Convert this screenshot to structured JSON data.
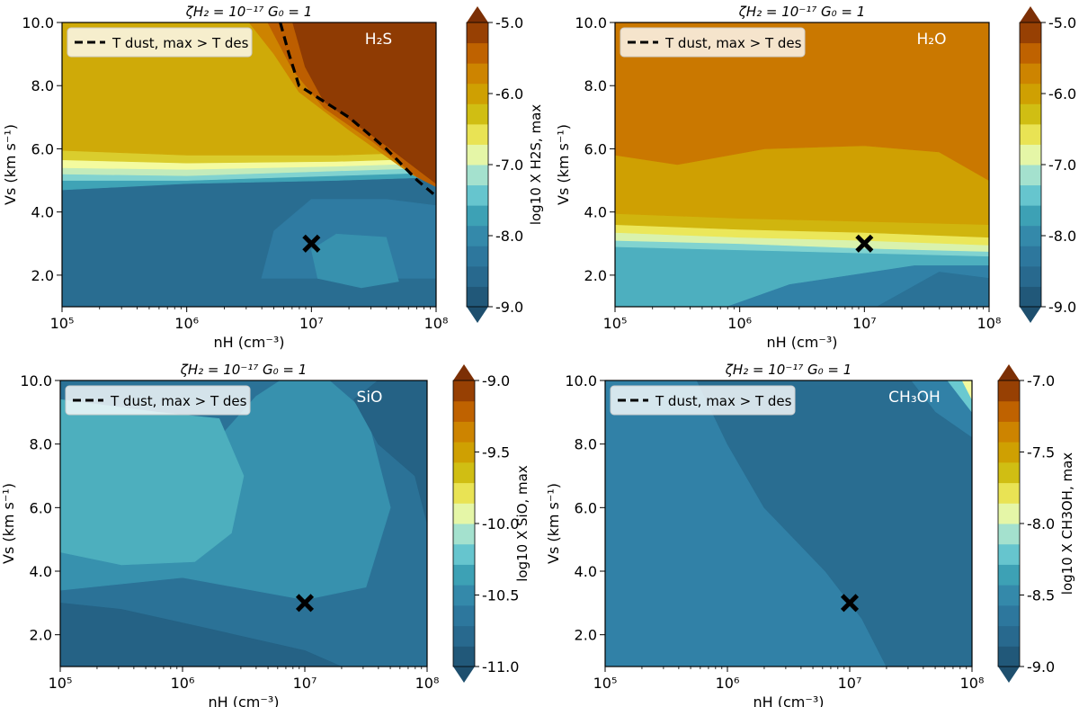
{
  "chart_data": [
    {
      "type": "heatmap",
      "title": "ζH₂ = 10⁻¹⁷ G₀ = 1",
      "xlabel": "nH (cm⁻³)",
      "ylabel": "Vs (km s⁻¹)",
      "xscale": "log",
      "xlim": [
        5,
        8
      ],
      "ylim": [
        1,
        10
      ],
      "xticks": [
        "10⁵",
        "10⁶",
        "10⁷",
        "10⁸"
      ],
      "yticks": [
        "2.0",
        "4.0",
        "6.0",
        "8.0",
        "10.0"
      ],
      "molecule": "H₂S",
      "legend_label": "T dust, max > T des",
      "cbar_label": "log10 X H2S, max",
      "cbar_ticks": [
        "-9.0",
        "-8.0",
        "-7.0",
        "-6.0",
        "-5.0"
      ],
      "cbar_range": [
        -9,
        -5
      ],
      "marker": {
        "x": 7,
        "y": 3
      },
      "tdes_curve": [
        [
          6.75,
          10
        ],
        [
          6.82,
          9
        ],
        [
          6.9,
          8
        ],
        [
          7.3,
          7
        ],
        [
          7.6,
          6
        ],
        [
          7.85,
          5
        ],
        [
          8.0,
          4.5
        ]
      ],
      "regions": [
        {
          "value": -8.5,
          "points": [
            [
              5,
              1
            ],
            [
              8,
              1
            ],
            [
              8,
              5.1
            ],
            [
              7.2,
              5.0
            ],
            [
              6,
              4.9
            ],
            [
              5,
              4.7
            ]
          ]
        },
        {
          "value": -8.2,
          "points": [
            [
              6.6,
              1.9
            ],
            [
              8,
              1.9
            ],
            [
              8,
              4.2
            ],
            [
              7.6,
              4.4
            ],
            [
              7,
              4.4
            ],
            [
              6.7,
              3.4
            ]
          ]
        },
        {
          "value": -7.9,
          "points": [
            [
              7.05,
              1.9
            ],
            [
              7.4,
              1.6
            ],
            [
              7.7,
              1.8
            ],
            [
              7.6,
              3.2
            ],
            [
              7.2,
              3.3
            ],
            [
              7,
              2.8
            ]
          ]
        },
        {
          "value": -7.7,
          "points": [
            [
              5,
              4.7
            ],
            [
              6,
              4.9
            ],
            [
              7.2,
              5.0
            ],
            [
              8,
              5.1
            ],
            [
              8,
              5.25
            ],
            [
              7.2,
              5.15
            ],
            [
              6,
              5.0
            ],
            [
              5,
              5.0
            ]
          ]
        },
        {
          "value": -7.3,
          "points": [
            [
              5,
              5.0
            ],
            [
              6,
              5.0
            ],
            [
              7.2,
              5.15
            ],
            [
              8,
              5.25
            ],
            [
              8,
              5.4
            ],
            [
              7.2,
              5.3
            ],
            [
              6,
              5.15
            ],
            [
              5,
              5.2
            ]
          ]
        },
        {
          "value": -7.0,
          "points": [
            [
              5,
              5.2
            ],
            [
              6,
              5.15
            ],
            [
              7.2,
              5.3
            ],
            [
              8,
              5.4
            ],
            [
              8,
              5.55
            ],
            [
              7.2,
              5.45
            ],
            [
              6,
              5.35
            ],
            [
              5,
              5.4
            ]
          ]
        },
        {
          "value": -6.8,
          "points": [
            [
              5,
              5.4
            ],
            [
              6,
              5.35
            ],
            [
              7.2,
              5.45
            ],
            [
              8,
              5.55
            ],
            [
              8,
              5.7
            ],
            [
              7.2,
              5.6
            ],
            [
              6,
              5.55
            ],
            [
              5,
              5.65
            ]
          ]
        },
        {
          "value": -6.4,
          "points": [
            [
              5,
              5.65
            ],
            [
              6,
              5.55
            ],
            [
              7.2,
              5.6
            ],
            [
              8,
              5.7
            ],
            [
              8,
              5.9
            ],
            [
              7.2,
              5.8
            ],
            [
              6,
              5.8
            ],
            [
              5,
              5.95
            ]
          ]
        },
        {
          "value": -6.1,
          "points": [
            [
              5,
              5.95
            ],
            [
              6,
              5.8
            ],
            [
              7.2,
              5.8
            ],
            [
              8,
              5.9
            ],
            [
              8,
              10
            ],
            [
              5,
              10
            ]
          ]
        },
        {
          "value": -5.7,
          "points": [
            [
              6.5,
              10
            ],
            [
              8,
              10
            ],
            [
              8,
              4.8
            ],
            [
              7.8,
              5.2
            ],
            [
              7.3,
              6.6
            ],
            [
              6.9,
              7.8
            ],
            [
              6.7,
              9
            ]
          ]
        },
        {
          "value": -5.4,
          "points": [
            [
              6.65,
              10
            ],
            [
              8,
              10
            ],
            [
              8,
              4.8
            ],
            [
              7.85,
              5.1
            ],
            [
              7.5,
              6.2
            ],
            [
              7.1,
              7.3
            ],
            [
              6.85,
              8.5
            ]
          ]
        },
        {
          "value": -5.1,
          "points": [
            [
              6.85,
              10
            ],
            [
              8,
              10
            ],
            [
              8,
              4.9
            ],
            [
              7.6,
              6.1
            ],
            [
              7.1,
              7.5
            ],
            [
              6.95,
              8.6
            ]
          ]
        }
      ]
    },
    {
      "type": "heatmap",
      "title": "ζH₂ = 10⁻¹⁷ G₀ = 1",
      "xlabel": "nH (cm⁻³)",
      "ylabel": "Vs (km s⁻¹)",
      "xscale": "log",
      "xlim": [
        5,
        8
      ],
      "ylim": [
        1,
        10
      ],
      "xticks": [
        "10⁵",
        "10⁶",
        "10⁷",
        "10⁸"
      ],
      "yticks": [
        "2.0",
        "4.0",
        "6.0",
        "8.0",
        "10.0"
      ],
      "molecule": "H₂O",
      "legend_label": "T dust, max > T des",
      "cbar_label": "log10 X H2O, max",
      "cbar_ticks": [
        "-9.0",
        "-8.0",
        "-7.0",
        "-6.0",
        "-5.0"
      ],
      "cbar_range": [
        -9,
        -5
      ],
      "marker": {
        "x": 7,
        "y": 3
      },
      "tdes_curve": [],
      "regions": [
        {
          "value": -7.6,
          "points": [
            [
              5,
              1
            ],
            [
              8,
              1
            ],
            [
              8,
              2.6
            ],
            [
              7,
              2.7
            ],
            [
              6,
              2.8
            ],
            [
              5,
              2.9
            ]
          ]
        },
        {
          "value": -8.1,
          "points": [
            [
              5.9,
              1
            ],
            [
              8,
              1
            ],
            [
              8,
              2.3
            ],
            [
              7.4,
              2.3
            ],
            [
              6.4,
              1.7
            ]
          ]
        },
        {
          "value": -8.4,
          "points": [
            [
              7.1,
              1
            ],
            [
              8,
              1
            ],
            [
              8,
              1.9
            ],
            [
              7.6,
              2.1
            ]
          ]
        },
        {
          "value": -7.3,
          "points": [
            [
              5,
              2.9
            ],
            [
              6,
              2.8
            ],
            [
              7,
              2.7
            ],
            [
              8,
              2.6
            ],
            [
              8,
              2.75
            ],
            [
              7,
              2.85
            ],
            [
              6,
              3.0
            ],
            [
              5,
              3.1
            ]
          ]
        },
        {
          "value": -6.9,
          "points": [
            [
              5,
              3.1
            ],
            [
              6,
              3.0
            ],
            [
              7,
              2.85
            ],
            [
              8,
              2.75
            ],
            [
              8,
              2.95
            ],
            [
              7,
              3.1
            ],
            [
              6,
              3.2
            ],
            [
              5,
              3.35
            ]
          ]
        },
        {
          "value": -6.6,
          "points": [
            [
              5,
              3.35
            ],
            [
              6,
              3.2
            ],
            [
              7,
              3.1
            ],
            [
              8,
              2.95
            ],
            [
              8,
              3.2
            ],
            [
              7,
              3.35
            ],
            [
              6,
              3.45
            ],
            [
              5,
              3.6
            ]
          ]
        },
        {
          "value": -6.2,
          "points": [
            [
              5,
              3.6
            ],
            [
              6,
              3.45
            ],
            [
              7,
              3.35
            ],
            [
              8,
              3.2
            ],
            [
              8,
              3.6
            ],
            [
              7,
              3.7
            ],
            [
              6,
              3.8
            ],
            [
              5,
              3.95
            ]
          ]
        },
        {
          "value": -6.0,
          "points": [
            [
              5,
              3.95
            ],
            [
              6,
              3.8
            ],
            [
              7,
              3.7
            ],
            [
              8,
              3.6
            ],
            [
              8,
              5.0
            ],
            [
              7.6,
              5.9
            ],
            [
              7,
              6.1
            ],
            [
              6.2,
              6.0
            ],
            [
              5.5,
              5.5
            ],
            [
              5,
              5.8
            ]
          ]
        },
        {
          "value": -5.6,
          "points": [
            [
              5,
              5.8
            ],
            [
              5.5,
              5.5
            ],
            [
              6.2,
              6.0
            ],
            [
              7,
              6.1
            ],
            [
              7.6,
              5.9
            ],
            [
              8,
              5.0
            ],
            [
              8,
              10
            ],
            [
              5,
              10
            ]
          ]
        }
      ]
    },
    {
      "type": "heatmap",
      "title": "ζH₂ = 10⁻¹⁷ G₀ = 1",
      "xlabel": "nH (cm⁻³)",
      "ylabel": "Vs (km s⁻¹)",
      "xscale": "log",
      "xlim": [
        5,
        8
      ],
      "ylim": [
        1,
        10
      ],
      "xticks": [
        "10⁵",
        "10⁶",
        "10⁷",
        "10⁸"
      ],
      "yticks": [
        "2.0",
        "4.0",
        "6.0",
        "8.0",
        "10.0"
      ],
      "molecule": "SiO",
      "legend_label": "T dust, max > T des",
      "cbar_label": "log10 X SiO, max",
      "cbar_ticks": [
        "-11.0",
        "-10.5",
        "-10.0",
        "-9.5",
        "-9.0"
      ],
      "cbar_range": [
        -11,
        -9
      ],
      "marker": {
        "x": 7,
        "y": 3
      },
      "tdes_curve": [],
      "regions": [
        {
          "value": -10.7,
          "points": [
            [
              5,
              1
            ],
            [
              8,
              1
            ],
            [
              8,
              10
            ],
            [
              5,
              10
            ]
          ]
        },
        {
          "value": -10.45,
          "points": [
            [
              5,
              4.8
            ],
            [
              5.8,
              7.2
            ],
            [
              6.3,
              8.2
            ],
            [
              6.6,
              9.5
            ],
            [
              6.8,
              10
            ],
            [
              7.2,
              10
            ],
            [
              7.5,
              9.0
            ],
            [
              7.7,
              6.0
            ],
            [
              7.5,
              3.5
            ],
            [
              7,
              3.1
            ],
            [
              6,
              3.8
            ],
            [
              5,
              3.4
            ]
          ]
        },
        {
          "value": -10.3,
          "points": [
            [
              5,
              6.2
            ],
            [
              5,
              9.4
            ],
            [
              5.8,
              9.0
            ],
            [
              6.3,
              8.8
            ],
            [
              6.5,
              7.0
            ],
            [
              6.4,
              5.2
            ],
            [
              6.1,
              4.3
            ],
            [
              5.5,
              4.2
            ],
            [
              5,
              4.6
            ]
          ]
        },
        {
          "value": -10.85,
          "points": [
            [
              5,
              1
            ],
            [
              7.3,
              1
            ],
            [
              7,
              1.5
            ],
            [
              6.2,
              2.2
            ],
            [
              5.5,
              2.8
            ],
            [
              5,
              3.0
            ]
          ]
        },
        {
          "value": -10.85,
          "points": [
            [
              7.6,
              10
            ],
            [
              8,
              10
            ],
            [
              8,
              5.5
            ],
            [
              7.9,
              7.0
            ],
            [
              7.6,
              8.0
            ],
            [
              7.4,
              9.4
            ]
          ]
        }
      ]
    },
    {
      "type": "heatmap",
      "title": "ζH₂ = 10⁻¹⁷ G₀ = 1",
      "xlabel": "nH (cm⁻³)",
      "ylabel": "Vs (km s⁻¹)",
      "xscale": "log",
      "xlim": [
        5,
        8
      ],
      "ylim": [
        1,
        10
      ],
      "xticks": [
        "10⁵",
        "10⁶",
        "10⁷",
        "10⁸"
      ],
      "yticks": [
        "2.0",
        "4.0",
        "6.0",
        "8.0",
        "10.0"
      ],
      "molecule": "CH₃OH",
      "legend_label": "T dust, max > T des",
      "cbar_label": "log10 X CH3OH, max",
      "cbar_ticks": [
        "-9.0",
        "-8.5",
        "-8.0",
        "-7.5",
        "-7.0"
      ],
      "cbar_range": [
        -9,
        -7
      ],
      "marker": {
        "x": 7,
        "y": 3
      },
      "tdes_curve": [],
      "regions": [
        {
          "value": -8.55,
          "points": [
            [
              5,
              1
            ],
            [
              8,
              1
            ],
            [
              8,
              10
            ],
            [
              5,
              10
            ]
          ]
        },
        {
          "value": -8.75,
          "points": [
            [
              5.75,
              10
            ],
            [
              6.0,
              8.0
            ],
            [
              6.3,
              6.0
            ],
            [
              6.8,
              4.0
            ],
            [
              7.1,
              2.5
            ],
            [
              7.3,
              1
            ],
            [
              8,
              1
            ],
            [
              8,
              8.2
            ],
            [
              7.7,
              9.0
            ],
            [
              7.5,
              10
            ]
          ]
        },
        {
          "value": -8.2,
          "points": [
            [
              7.8,
              10
            ],
            [
              8,
              10
            ],
            [
              8,
              9.0
            ],
            [
              7.9,
              9.5
            ]
          ]
        },
        {
          "value": -7.9,
          "points": [
            [
              7.92,
              10
            ],
            [
              8,
              10
            ],
            [
              8,
              9.4
            ]
          ]
        }
      ]
    }
  ]
}
